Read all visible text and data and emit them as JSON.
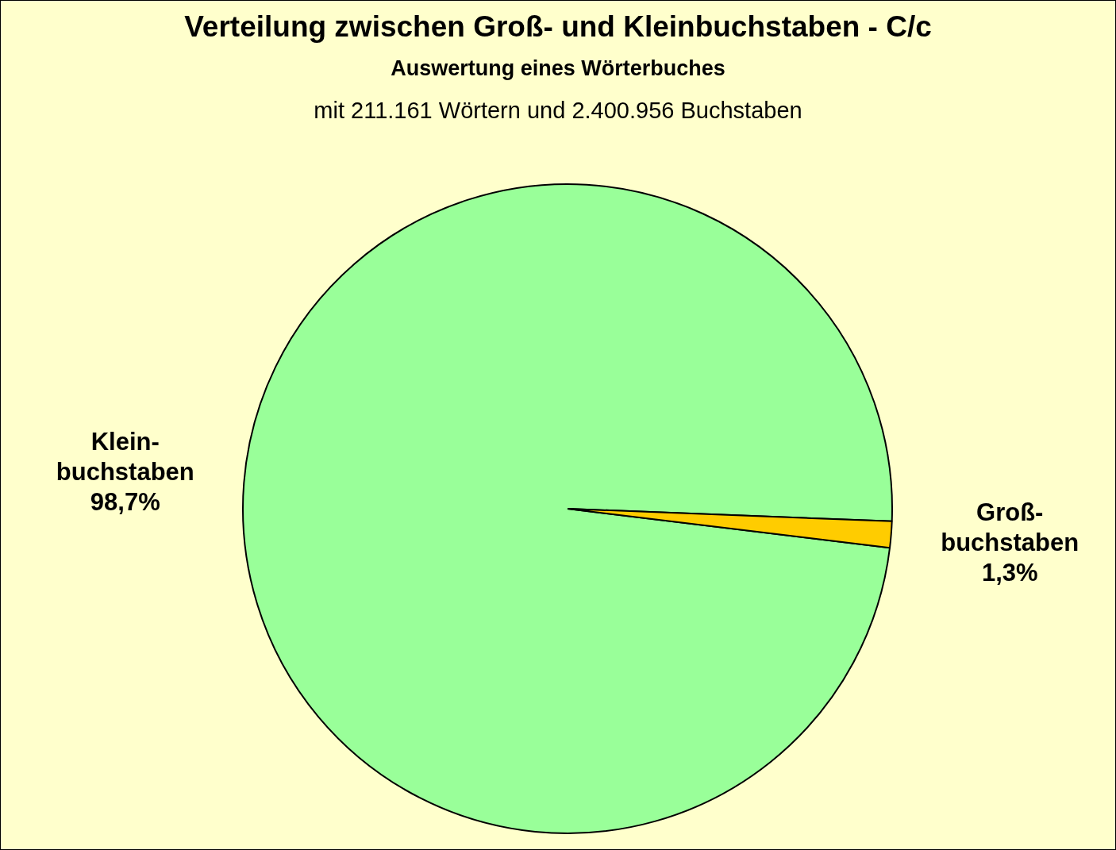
{
  "chart_data": {
    "type": "pie",
    "title": "Verteilung zwischen Groß- und  Kleinbuchstaben - C/c",
    "subtitle": "Auswertung eines Wörterbuches",
    "annotations": [
      "mit 211.161 Wörtern und 2.400.956 Buchstaben"
    ],
    "categories": [
      "Klein-\nbuchstaben",
      "Groß-\nbuchstaben"
    ],
    "values": [
      98.7,
      1.3
    ],
    "colors": [
      "#99ff99",
      "#ffcc00"
    ],
    "value_labels": [
      "98,7%",
      "1,3%"
    ],
    "legend": false
  }
}
